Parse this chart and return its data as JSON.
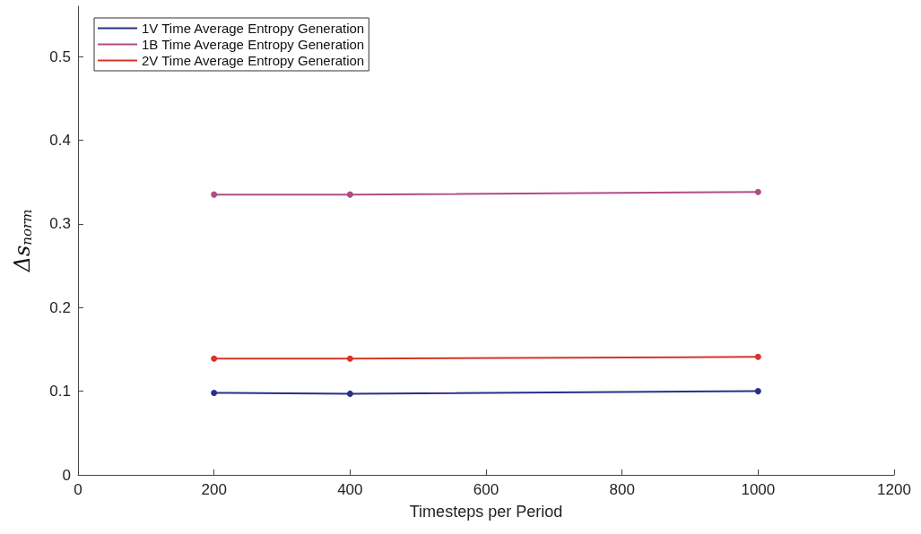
{
  "chart_data": {
    "type": "line",
    "xlabel": "Timesteps per Period",
    "ylabel": "Δs$_{norm}$",
    "x": [
      200,
      400,
      1000
    ],
    "series": [
      {
        "name": "1V Time Average Entropy Generation",
        "color": "#2b2f8a",
        "values": [
          0.098,
          0.097,
          0.1
        ]
      },
      {
        "name": "1B Time Average Entropy Generation",
        "color": "#b04e86",
        "values": [
          0.335,
          0.335,
          0.338
        ]
      },
      {
        "name": "2V Time Average Entropy Generation",
        "color": "#d8352a",
        "values": [
          0.139,
          0.139,
          0.141
        ]
      }
    ],
    "xlim": [
      0,
      1200
    ],
    "xticks": [
      0,
      200,
      400,
      600,
      800,
      1000,
      1200
    ],
    "ylim": [
      0,
      0.56
    ],
    "yticks": [
      0,
      0.1,
      0.2,
      0.3,
      0.4,
      0.5
    ],
    "grid": false,
    "legend": "top left",
    "marker": "circle",
    "line_style": "solid"
  }
}
